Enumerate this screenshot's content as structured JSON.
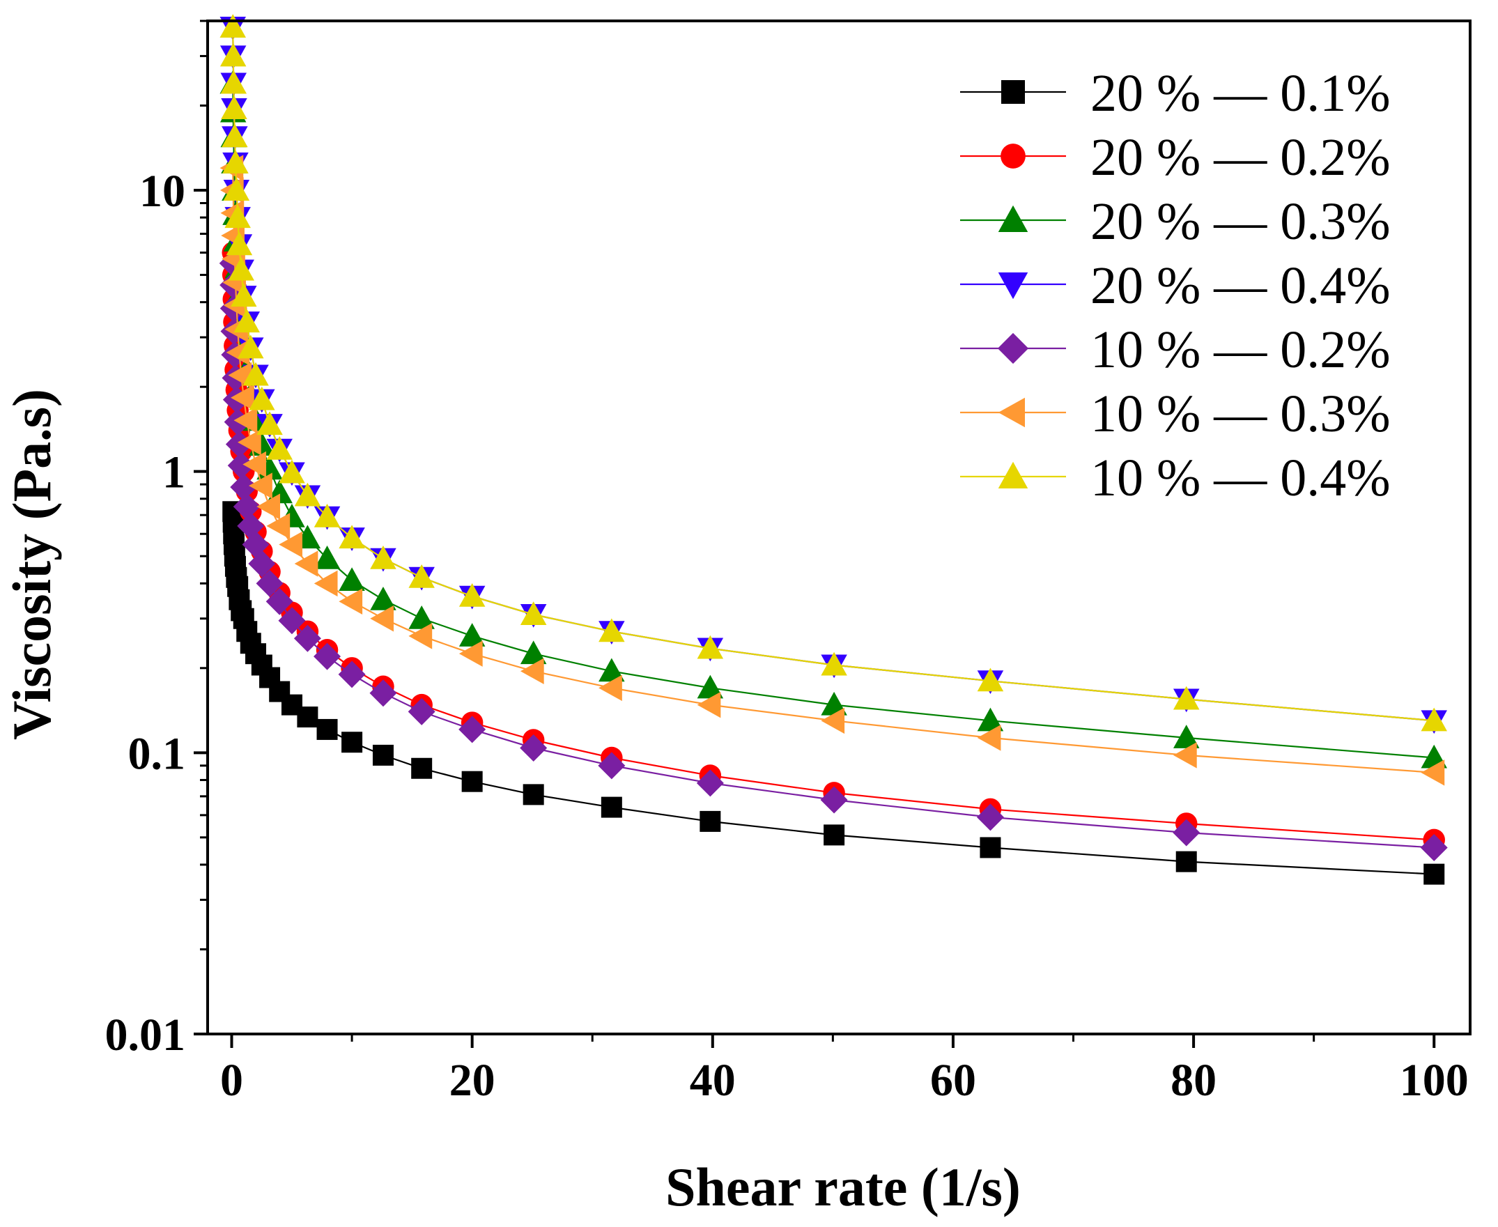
{
  "chart_data": {
    "type": "line",
    "title": "",
    "xlabel": "Shear rate (1/s)",
    "ylabel": "Viscosity (Pa.s)",
    "xlim": [
      -2,
      103
    ],
    "ylim": [
      0.01,
      40
    ],
    "yscale": "log",
    "x_ticks": [
      0,
      20,
      40,
      60,
      80,
      100
    ],
    "x_tick_labels": [
      "0",
      "20",
      "40",
      "60",
      "80",
      "100"
    ],
    "y_ticks": [
      0.01,
      0.1,
      1,
      10
    ],
    "y_tick_labels": [
      "0.01",
      "0.1",
      "1",
      "10"
    ],
    "legend_position": "top-right",
    "x": [
      0.1,
      0.126,
      0.158,
      0.2,
      0.251,
      0.316,
      0.398,
      0.501,
      0.631,
      0.794,
      1,
      1.26,
      1.58,
      2,
      2.51,
      3.16,
      3.98,
      5.01,
      6.31,
      7.94,
      10,
      12.6,
      15.8,
      20,
      25.1,
      31.6,
      39.8,
      50.1,
      63.1,
      79.4,
      100
    ],
    "series": [
      {
        "name": "20 % — 0.1%",
        "color": "#000000",
        "marker": "square",
        "values": [
          0.72,
          0.66,
          0.6,
          0.55,
          0.5,
          0.46,
          0.42,
          0.39,
          0.35,
          0.32,
          0.3,
          0.27,
          0.245,
          0.225,
          0.205,
          0.185,
          0.165,
          0.148,
          0.134,
          0.121,
          0.109,
          0.098,
          0.088,
          0.079,
          0.071,
          0.064,
          0.057,
          0.051,
          0.046,
          0.041,
          0.037
        ]
      },
      {
        "name": "20 % — 0.2%",
        "color": "#ff0000",
        "marker": "circle",
        "values": [
          6.0,
          5.0,
          4.1,
          3.4,
          2.8,
          2.3,
          1.95,
          1.65,
          1.4,
          1.18,
          1.0,
          0.85,
          0.72,
          0.61,
          0.52,
          0.44,
          0.37,
          0.315,
          0.27,
          0.232,
          0.2,
          0.172,
          0.148,
          0.128,
          0.111,
          0.096,
          0.083,
          0.072,
          0.063,
          0.056,
          0.049
        ]
      },
      {
        "name": "20 % — 0.3%",
        "color": "#008000",
        "marker": "triangle-up",
        "values": [
          24,
          19,
          15.5,
          12.5,
          10,
          8.2,
          6.6,
          5.3,
          4.3,
          3.5,
          2.8,
          2.3,
          1.87,
          1.52,
          1.24,
          1.02,
          0.84,
          0.69,
          0.58,
          0.49,
          0.41,
          0.35,
          0.3,
          0.26,
          0.225,
          0.195,
          0.17,
          0.148,
          0.13,
          0.113,
          0.096
        ]
      },
      {
        "name": "20 % — 0.4%",
        "color": "#3300ff",
        "marker": "triangle-down",
        "values": [
          38,
          30,
          24,
          19.5,
          15.5,
          12.5,
          10,
          8.0,
          6.4,
          5.2,
          4.2,
          3.4,
          2.75,
          2.2,
          1.8,
          1.47,
          1.2,
          0.99,
          0.82,
          0.69,
          0.58,
          0.49,
          0.42,
          0.36,
          0.31,
          0.27,
          0.235,
          0.205,
          0.18,
          0.155,
          0.13
        ]
      },
      {
        "name": "10 % — 0.2%",
        "color": "#7a1fa2",
        "marker": "diamond",
        "values": [
          5.5,
          4.6,
          3.8,
          3.15,
          2.6,
          2.15,
          1.8,
          1.5,
          1.25,
          1.05,
          0.88,
          0.75,
          0.64,
          0.55,
          0.47,
          0.4,
          0.345,
          0.295,
          0.255,
          0.22,
          0.19,
          0.163,
          0.14,
          0.121,
          0.104,
          0.09,
          0.078,
          0.068,
          0.059,
          0.052,
          0.046
        ]
      },
      {
        "name": "10 % — 0.3%",
        "color": "#ff9933",
        "marker": "triangle-left",
        "values": [
          12,
          10,
          8.3,
          6.9,
          5.7,
          4.7,
          3.9,
          3.2,
          2.65,
          2.2,
          1.83,
          1.52,
          1.27,
          1.06,
          0.89,
          0.75,
          0.64,
          0.55,
          0.47,
          0.4,
          0.345,
          0.3,
          0.26,
          0.225,
          0.195,
          0.17,
          0.148,
          0.13,
          0.113,
          0.098,
          0.085
        ]
      },
      {
        "name": "10 % — 0.4%",
        "color": "#e6d600",
        "marker": "triangle-up",
        "values": [
          38,
          30,
          24,
          19.5,
          15.5,
          12.5,
          10,
          8.0,
          6.4,
          5.2,
          4.2,
          3.4,
          2.75,
          2.2,
          1.8,
          1.47,
          1.2,
          0.99,
          0.82,
          0.69,
          0.58,
          0.49,
          0.42,
          0.36,
          0.31,
          0.27,
          0.235,
          0.205,
          0.18,
          0.155,
          0.13
        ]
      }
    ]
  }
}
